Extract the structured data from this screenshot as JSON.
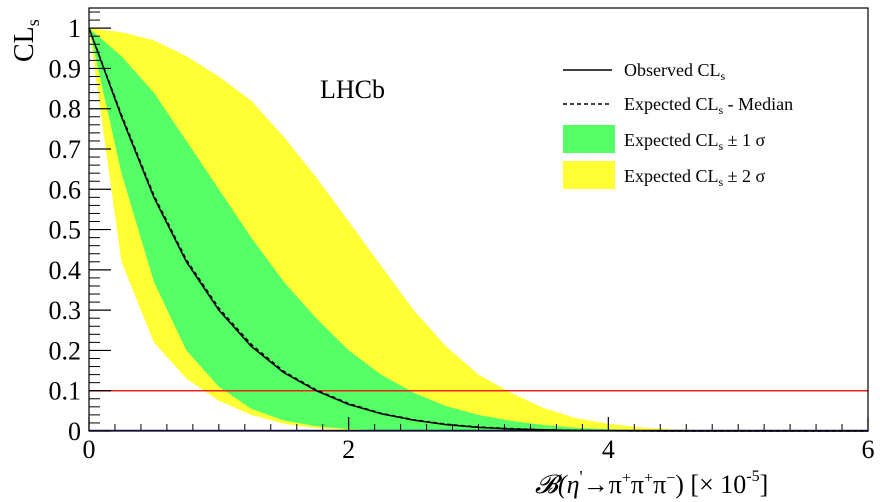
{
  "colors": {
    "observed": "#000000",
    "median": "#000000",
    "band1": "#55ff66",
    "band2": "#ffff33",
    "threshold": "#e8251c",
    "zero_line": "#1a1aa0",
    "axes": "#000000"
  },
  "chart_data": {
    "type": "area",
    "title": "",
    "watermark": "LHCb",
    "ylabel_main": "CL",
    "ylabel_sub": "s",
    "xlabel_pre": "𝓑(η",
    "xlabel_prime": "'",
    "xlabel_arrow": "→π",
    "xlabel_plus1": "+",
    "xlabel_pi2": "π",
    "xlabel_plus2": "+",
    "xlabel_pi3": "π",
    "xlabel_minus": "−",
    "xlabel_scale": ") [× 10",
    "xlabel_exp": "-5",
    "xlabel_close": "]",
    "xlim": [
      0,
      6
    ],
    "ylim": [
      0,
      1.05
    ],
    "x_ticks": [
      0,
      2,
      4,
      6
    ],
    "x_tick_labels": [
      "0",
      "2",
      "4",
      "6"
    ],
    "y_ticks": [
      0,
      0.1,
      0.2,
      0.3,
      0.4,
      0.5,
      0.6,
      0.7,
      0.8,
      0.9,
      1
    ],
    "y_tick_labels": [
      "0",
      "0.1",
      "0.2",
      "0.3",
      "0.4",
      "0.5",
      "0.6",
      "0.7",
      "0.8",
      "0.9",
      "1"
    ],
    "grid": false,
    "legend_position": "top-right",
    "legend": [
      {
        "key": "observed",
        "style": "solid-line",
        "text": "Observed CL",
        "sub": "s",
        "suffix": ""
      },
      {
        "key": "median",
        "style": "dashed-line",
        "text": "Expected CL",
        "sub": "s",
        "suffix": " - Median"
      },
      {
        "key": "band1",
        "style": "fill",
        "text": "Expected CL",
        "sub": "s",
        "suffix": " ± 1 σ"
      },
      {
        "key": "band2",
        "style": "fill",
        "text": "Expected CL",
        "sub": "s",
        "suffix": " ± 2 σ"
      }
    ],
    "threshold_y": 0.1,
    "x": [
      0,
      0.25,
      0.5,
      0.75,
      1.0,
      1.25,
      1.5,
      1.75,
      2.0,
      2.25,
      2.5,
      2.75,
      3.0,
      3.25,
      3.5,
      3.75,
      4.0,
      4.25,
      4.5,
      4.75,
      5.0,
      5.25,
      5.5,
      5.75,
      6.0
    ],
    "series": [
      {
        "name": "Observed CL",
        "key": "observed",
        "values": [
          1.0,
          0.78,
          0.58,
          0.42,
          0.3,
          0.21,
          0.145,
          0.1,
          0.066,
          0.043,
          0.027,
          0.016,
          0.009,
          0.005,
          0.003,
          0.001,
          0.0006,
          0.0003,
          0.0001,
          0.0,
          0.0,
          0.0,
          0.0,
          0.0,
          0.0
        ]
      },
      {
        "name": "Expected CL - Median",
        "key": "median",
        "values": [
          1.0,
          0.785,
          0.585,
          0.425,
          0.305,
          0.215,
          0.148,
          0.102,
          0.068,
          0.044,
          0.028,
          0.017,
          0.01,
          0.006,
          0.003,
          0.0015,
          0.0007,
          0.0003,
          0.0001,
          0.0,
          0.0,
          0.0,
          0.0,
          0.0,
          0.0
        ]
      },
      {
        "name": "Expected CL ± 1 σ",
        "key": "band1",
        "lower": [
          1.0,
          0.64,
          0.37,
          0.2,
          0.11,
          0.055,
          0.026,
          0.012,
          0.005,
          0.002,
          0.001,
          0.0,
          0.0,
          0.0,
          0.0,
          0.0,
          0.0,
          0.0,
          0.0,
          0.0,
          0.0,
          0.0,
          0.0,
          0.0,
          0.0
        ],
        "upper": [
          1.0,
          0.93,
          0.84,
          0.72,
          0.6,
          0.48,
          0.37,
          0.28,
          0.2,
          0.14,
          0.095,
          0.062,
          0.04,
          0.025,
          0.015,
          0.008,
          0.0045,
          0.0022,
          0.001,
          0.0004,
          0.0001,
          0.0,
          0.0,
          0.0,
          0.0
        ]
      },
      {
        "name": "Expected CL ± 2 σ",
        "key": "band2",
        "lower": [
          1.0,
          0.42,
          0.22,
          0.13,
          0.075,
          0.04,
          0.018,
          0.007,
          0.002,
          0.0005,
          0.0,
          0.0,
          0.0,
          0.0,
          0.0,
          0.0,
          0.0,
          0.0,
          0.0,
          0.0,
          0.0,
          0.0,
          0.0,
          0.0,
          0.0
        ],
        "upper": [
          1.0,
          0.99,
          0.97,
          0.93,
          0.88,
          0.82,
          0.73,
          0.63,
          0.52,
          0.41,
          0.3,
          0.21,
          0.14,
          0.095,
          0.057,
          0.032,
          0.018,
          0.009,
          0.004,
          0.002,
          0.0008,
          0.0002,
          0.0,
          0.0,
          0.0
        ]
      }
    ]
  }
}
